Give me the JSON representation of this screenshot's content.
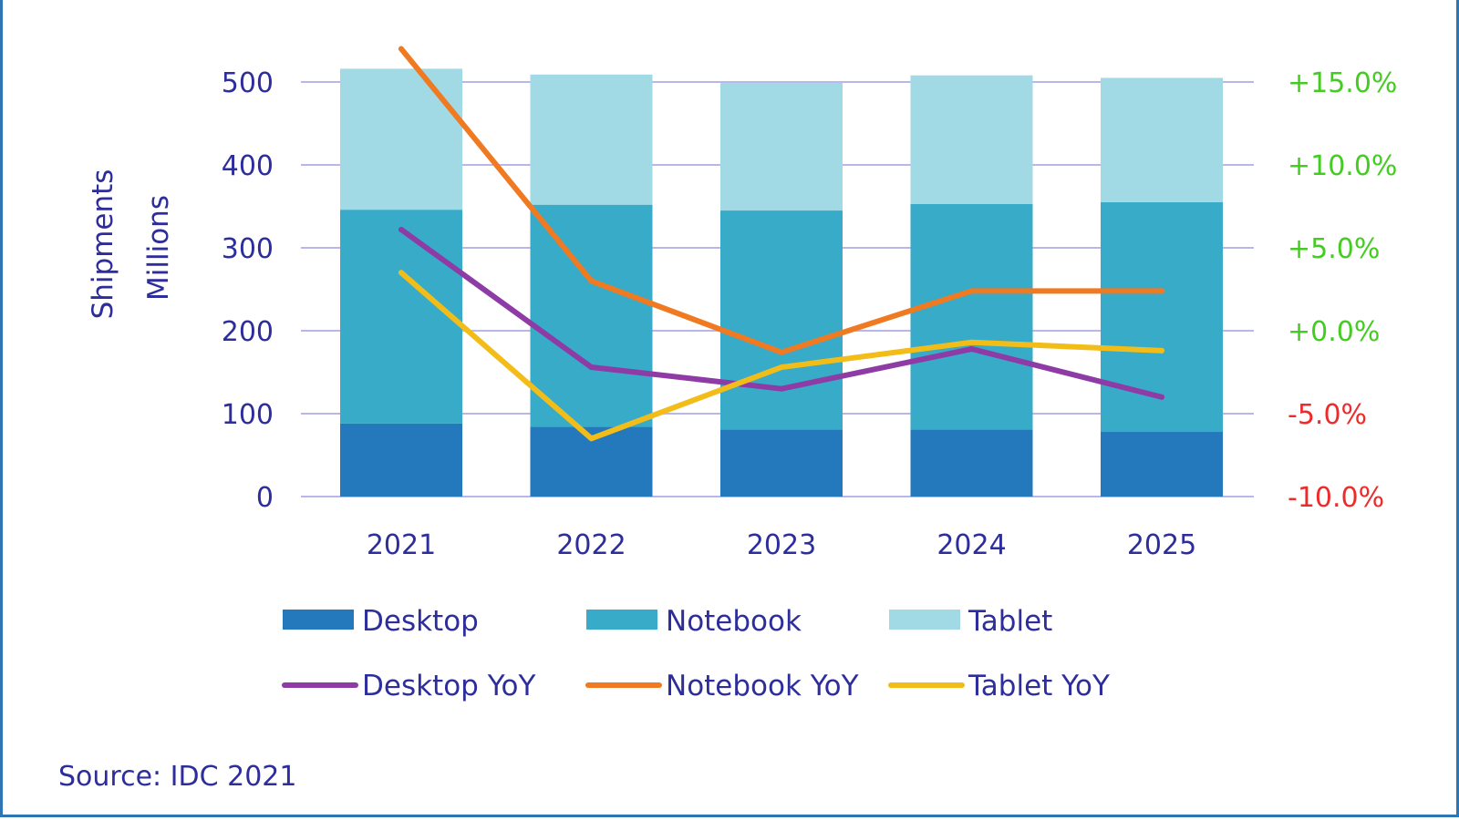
{
  "chart_data": {
    "type": "bar",
    "stacked": true,
    "categories": [
      "2021",
      "2022",
      "2023",
      "2024",
      "2025"
    ],
    "series": [
      {
        "name": "Desktop",
        "color": "#2479bd",
        "values": [
          88,
          84,
          81,
          81,
          78
        ]
      },
      {
        "name": "Notebook",
        "color": "#37abc8",
        "values": [
          258,
          268,
          264,
          272,
          277
        ]
      },
      {
        "name": "Tablet",
        "color": "#a1dae5",
        "values": [
          170,
          157,
          154,
          155,
          150
        ]
      }
    ],
    "line_series": [
      {
        "name": "Desktop YoY",
        "color": "#8e3ba6",
        "axis": "right",
        "values": [
          6.1,
          -2.2,
          -3.5,
          -1.1,
          -4.0
        ]
      },
      {
        "name": "Notebook YoY",
        "color": "#f07a22",
        "axis": "right",
        "values": [
          17.0,
          3.0,
          -1.3,
          2.4,
          2.4
        ]
      },
      {
        "name": "Tablet YoY",
        "color": "#f2bd18",
        "axis": "right",
        "values": [
          3.5,
          -6.5,
          -2.2,
          -0.7,
          -1.2
        ]
      }
    ],
    "ylabel": "Shipments\nMillions",
    "ylim": [
      0,
      600
    ],
    "yticks": [
      "0",
      "100",
      "200",
      "300",
      "400",
      "500"
    ],
    "y2lim": [
      -10,
      20
    ],
    "y2ticks": [
      {
        "value": -10,
        "label": "-10.0%",
        "color": "#ee2b2b"
      },
      {
        "value": -5,
        "label": "-5.0%",
        "color": "#ee2b2b"
      },
      {
        "value": 0,
        "label": "+0.0%",
        "color": "#44cc22"
      },
      {
        "value": 5,
        "label": "+5.0%",
        "color": "#44cc22"
      },
      {
        "value": 10,
        "label": "+10.0%",
        "color": "#44cc22"
      },
      {
        "value": 15,
        "label": "+15.0%",
        "color": "#44cc22"
      }
    ],
    "grid": true,
    "legend_position": "bottom",
    "source": "Source: IDC 2021"
  }
}
